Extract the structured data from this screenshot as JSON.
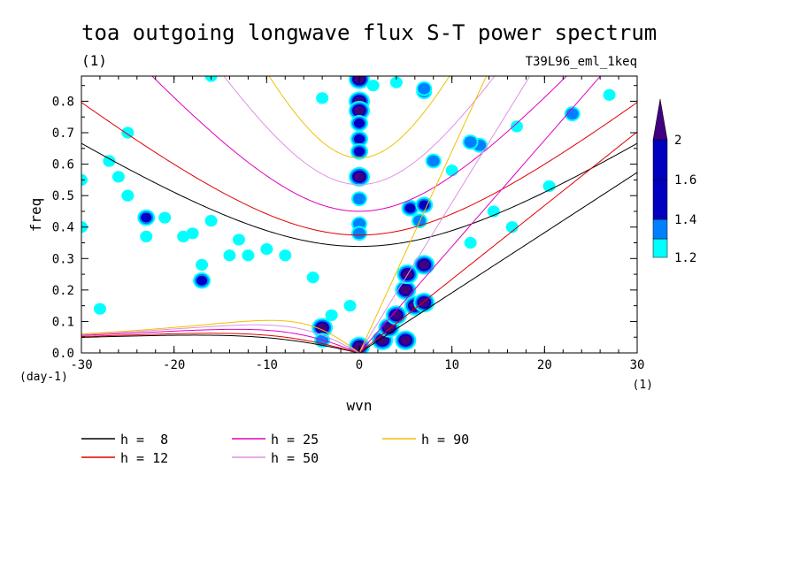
{
  "chart_data": {
    "type": "heatmap",
    "title": "toa outgoing longwave flux S-T power spectrum",
    "subtitle_left": "(1)",
    "subtitle_right": "T39L96_eml_1keq",
    "xlabel": "wvn",
    "ylabel": "freq",
    "x_units": "(1)",
    "y_units": "(day-1)",
    "xlim": [
      -30,
      30
    ],
    "ylim": [
      0,
      0.88
    ],
    "x_ticks": [
      -30,
      -20,
      -10,
      0,
      10,
      20,
      30
    ],
    "x_tick_labels": [
      "-30",
      "-20",
      "-10",
      "0",
      "10",
      "20",
      "30"
    ],
    "y_ticks": [
      0.0,
      0.1,
      0.2,
      0.3,
      0.4,
      0.5,
      0.6,
      0.7,
      0.8
    ],
    "y_tick_labels": [
      "0.0",
      "0.1",
      "0.2",
      "0.3",
      "0.4",
      "0.5",
      "0.6",
      "0.7",
      "0.8"
    ],
    "colorbar": {
      "levels": [
        1.2,
        1.4,
        1.6,
        2
      ],
      "labels": [
        "1.2",
        "1.4",
        "1.6",
        "2"
      ],
      "colors": [
        "#00ffff",
        "#0080ff",
        "#0000c0",
        "#400080"
      ]
    },
    "dispersion_curves": [
      {
        "name": "h =  8",
        "h": 8,
        "color": "#000000"
      },
      {
        "name": "h = 12",
        "h": 12,
        "color": "#e00000"
      },
      {
        "name": "h = 25",
        "h": 25,
        "color": "#e000c0"
      },
      {
        "name": "h = 50",
        "h": 50,
        "color": "#e090e0"
      },
      {
        "name": "h = 90",
        "h": 90,
        "color": "#f0c000"
      }
    ],
    "contour_blobs": [
      {
        "x": 0,
        "y": 0.87,
        "level": 2
      },
      {
        "x": 0,
        "y": 0.8,
        "level": 2
      },
      {
        "x": 0,
        "y": 0.77,
        "level": 2
      },
      {
        "x": 0,
        "y": 0.73,
        "level": 1.6
      },
      {
        "x": 0,
        "y": 0.68,
        "level": 1.6
      },
      {
        "x": 0,
        "y": 0.64,
        "level": 1.6
      },
      {
        "x": 0,
        "y": 0.56,
        "level": 2
      },
      {
        "x": 0,
        "y": 0.49,
        "level": 1.4
      },
      {
        "x": 0,
        "y": 0.41,
        "level": 1.4
      },
      {
        "x": 0,
        "y": 0.38,
        "level": 1.4
      },
      {
        "x": 0,
        "y": 0.02,
        "level": 2
      },
      {
        "x": -4,
        "y": 0.08,
        "level": 2
      },
      {
        "x": -4,
        "y": 0.04,
        "level": 1.4
      },
      {
        "x": 2.5,
        "y": 0.04,
        "level": 2
      },
      {
        "x": 3.2,
        "y": 0.08,
        "level": 2
      },
      {
        "x": 4,
        "y": 0.12,
        "level": 2
      },
      {
        "x": 5,
        "y": 0.04,
        "level": 2
      },
      {
        "x": 5,
        "y": 0.2,
        "level": 2
      },
      {
        "x": 5.2,
        "y": 0.25,
        "level": 2
      },
      {
        "x": 6,
        "y": 0.15,
        "level": 2
      },
      {
        "x": 7,
        "y": 0.28,
        "level": 2
      },
      {
        "x": 7,
        "y": 0.16,
        "level": 2
      },
      {
        "x": 5.5,
        "y": 0.46,
        "level": 1.6
      },
      {
        "x": 7,
        "y": 0.47,
        "level": 1.6
      },
      {
        "x": 6.5,
        "y": 0.42,
        "level": 1.4
      },
      {
        "x": 13,
        "y": 0.66,
        "level": 1.4
      },
      {
        "x": 12,
        "y": 0.67,
        "level": 1.4
      },
      {
        "x": 7,
        "y": 0.83,
        "level": 1.4
      },
      {
        "x": 8,
        "y": 0.61,
        "level": 1.4
      },
      {
        "x": 12,
        "y": 0.35,
        "level": 1.2
      },
      {
        "x": 10,
        "y": 0.58,
        "level": 1.2
      },
      {
        "x": 23,
        "y": 0.76,
        "level": 1.4
      },
      {
        "x": 20.5,
        "y": 0.53,
        "level": 1.2
      },
      {
        "x": 14.5,
        "y": 0.45,
        "level": 1.2
      },
      {
        "x": 16.5,
        "y": 0.4,
        "level": 1.2
      },
      {
        "x": -27,
        "y": 0.61,
        "level": 1.2
      },
      {
        "x": -26,
        "y": 0.56,
        "level": 1.2
      },
      {
        "x": -23,
        "y": 0.43,
        "level": 1.6
      },
      {
        "x": -21,
        "y": 0.43,
        "level": 1.2
      },
      {
        "x": -25,
        "y": 0.5,
        "level": 1.2
      },
      {
        "x": -17,
        "y": 0.23,
        "level": 1.6
      },
      {
        "x": -17,
        "y": 0.28,
        "level": 1.2
      },
      {
        "x": -19,
        "y": 0.37,
        "level": 1.2
      },
      {
        "x": -14,
        "y": 0.31,
        "level": 1.2
      },
      {
        "x": -13,
        "y": 0.36,
        "level": 1.2
      },
      {
        "x": -16,
        "y": 0.42,
        "level": 1.2
      },
      {
        "x": -18,
        "y": 0.38,
        "level": 1.2
      },
      {
        "x": -5,
        "y": 0.24,
        "level": 1.2
      },
      {
        "x": -10,
        "y": 0.33,
        "level": 1.2
      },
      {
        "x": -8,
        "y": 0.31,
        "level": 1.2
      },
      {
        "x": -12,
        "y": 0.31,
        "level": 1.2
      },
      {
        "x": -25,
        "y": 0.7,
        "level": 1.2
      },
      {
        "x": -23,
        "y": 0.37,
        "level": 1.2
      },
      {
        "x": -28,
        "y": 0.14,
        "level": 1.2
      },
      {
        "x": -30,
        "y": 0.4,
        "level": 1.2
      },
      {
        "x": -30,
        "y": 0.55,
        "level": 1.2
      },
      {
        "x": -3,
        "y": 0.12,
        "level": 1.2
      },
      {
        "x": -1,
        "y": 0.15,
        "level": 1.2
      },
      {
        "x": 1.5,
        "y": 0.85,
        "level": 1.2
      },
      {
        "x": 7,
        "y": 0.84,
        "level": 1.4
      },
      {
        "x": 4,
        "y": 0.86,
        "level": 1.2
      },
      {
        "x": 17,
        "y": 0.72,
        "level": 1.2
      },
      {
        "x": -16,
        "y": 0.88,
        "level": 1.2
      },
      {
        "x": -4,
        "y": 0.81,
        "level": 1.2
      },
      {
        "x": 27,
        "y": 0.82,
        "level": 1.2
      }
    ],
    "legend_placement": "bottom-left"
  }
}
